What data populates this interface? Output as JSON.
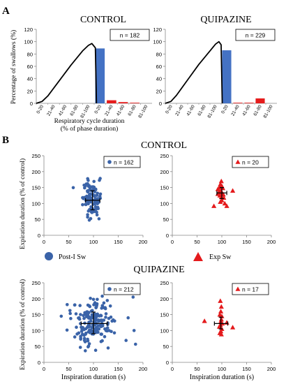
{
  "panels": {
    "A": {
      "letter": "A"
    },
    "B": {
      "letter": "B"
    }
  },
  "chart_data": [
    {
      "id": "a-control",
      "type": "bar",
      "title": "CONTROL",
      "ylabel": "Percentage of swallows (%)",
      "xlabel": "Respiratory cycle duration",
      "xlabel2": "(% of phase duration)",
      "n_label": "n = 182",
      "ylim": [
        0,
        120
      ],
      "yticks": [
        0,
        20,
        40,
        60,
        80,
        100,
        120
      ],
      "categories": [
        "0-20",
        "21-40",
        "41-60",
        "61-80",
        "81-100",
        "0-20",
        "21-40",
        "41-60",
        "61-80",
        "81-100"
      ],
      "values": [
        0,
        0,
        0,
        0,
        0,
        89,
        5,
        2,
        1,
        0
      ],
      "bar_colors": [
        "#4472C4",
        "#4472C4",
        "#4472C4",
        "#4472C4",
        "#4472C4",
        "#4472C4",
        "#E51C1C",
        "#E51C1C",
        "#E51C1C",
        "#E51C1C"
      ],
      "curve": {
        "x": [
          0,
          0.5,
          1,
          2,
          3,
          4,
          4.5,
          4.8,
          5.1,
          5.2
        ],
        "y": [
          0,
          3,
          12,
          37,
          62,
          85,
          94,
          97,
          90,
          0
        ]
      }
    },
    {
      "id": "a-quipazine",
      "type": "bar",
      "title": "QUIPAZINE",
      "ylabel": "",
      "xlabel": "",
      "n_label": "n = 229",
      "ylim": [
        0,
        120
      ],
      "yticks": [
        0,
        20,
        40,
        60,
        80,
        100,
        120
      ],
      "categories": [
        "0-20",
        "21-40",
        "41-60",
        "61-80",
        "81-100",
        "0-20",
        "21-40",
        "41-60",
        "61-80",
        "81-100"
      ],
      "values": [
        0,
        0,
        0,
        0,
        0,
        86,
        1,
        1,
        8,
        0
      ],
      "bar_colors": [
        "#4472C4",
        "#4472C4",
        "#4472C4",
        "#4472C4",
        "#4472C4",
        "#4472C4",
        "#E51C1C",
        "#E51C1C",
        "#E51C1C",
        "#E51C1C"
      ],
      "curve": {
        "x": [
          0,
          0.5,
          1,
          2,
          3,
          4,
          4.5,
          4.8,
          5.0,
          5.1
        ],
        "y": [
          0,
          3,
          13,
          38,
          63,
          85,
          96,
          100,
          95,
          0
        ]
      }
    },
    {
      "id": "b-control-post",
      "type": "scatter",
      "title": "CONTROL",
      "ylabel": "Expiration duration (% of control)",
      "xlabel": "",
      "n_label": "n = 162",
      "color": "#3A63A8",
      "marker": "circle",
      "xlim": [
        0,
        200
      ],
      "ylim": [
        0,
        250
      ],
      "xticks": [
        0,
        50,
        100,
        150,
        200
      ],
      "yticks": [
        0,
        50,
        100,
        150,
        200,
        250
      ],
      "mean": [
        98,
        110
      ],
      "sd_x": [
        84,
        113
      ],
      "sd_y": [
        80,
        140
      ],
      "seed": 7,
      "n_points": 100,
      "cx": 97,
      "sx": 9,
      "cy": 112,
      "sy": 30
    },
    {
      "id": "b-control-exp",
      "type": "scatter",
      "ylabel": "",
      "xlabel": "",
      "n_label": "n = 20",
      "color": "#E41A1C",
      "marker": "triangle",
      "xlim": [
        0,
        200
      ],
      "ylim": [
        0,
        250
      ],
      "xticks": [
        0,
        50,
        100,
        150,
        200
      ],
      "yticks": [
        0,
        50,
        100,
        150,
        200,
        250
      ],
      "mean": [
        100,
        133
      ],
      "sd_x": [
        90,
        110
      ],
      "sd_y": [
        115,
        150
      ],
      "points": [
        [
          92,
          145
        ],
        [
          95,
          150
        ],
        [
          97,
          160
        ],
        [
          99,
          170
        ],
        [
          100,
          155
        ],
        [
          102,
          148
        ],
        [
          98,
          140
        ],
        [
          94,
          135
        ],
        [
          101,
          132
        ],
        [
          103,
          128
        ],
        [
          96,
          125
        ],
        [
          99,
          120
        ],
        [
          104,
          118
        ],
        [
          100,
          110
        ],
        [
          97,
          105
        ],
        [
          106,
          100
        ],
        [
          84,
          92
        ],
        [
          110,
          92
        ],
        [
          122,
          140
        ],
        [
          92,
          130
        ]
      ]
    },
    {
      "id": "b-quip-post",
      "type": "scatter",
      "title": "QUIPAZINE",
      "ylabel": "Expiration duration (% of control)",
      "xlabel": "Inspiration duration (s)",
      "n_label": "n = 212",
      "color": "#3A63A8",
      "marker": "circle",
      "xlim": [
        0,
        200
      ],
      "ylim": [
        0,
        250
      ],
      "xticks": [
        0,
        50,
        100,
        150,
        200
      ],
      "yticks": [
        0,
        50,
        100,
        150,
        200,
        250
      ],
      "mean": [
        100,
        122
      ],
      "sd_x": [
        75,
        128
      ],
      "sd_y": [
        90,
        158
      ],
      "seed": 13,
      "n_points": 170,
      "cx": 100,
      "sx": 22,
      "cy": 122,
      "sy": 35,
      "extra_points": [
        [
          35,
          145
        ],
        [
          180,
          205
        ],
        [
          182,
          100
        ],
        [
          185,
          57
        ],
        [
          170,
          140
        ]
      ]
    },
    {
      "id": "b-quip-exp",
      "type": "scatter",
      "ylabel": "",
      "xlabel": "Inspiration duration (s)",
      "n_label": "n = 17",
      "color": "#E41A1C",
      "marker": "triangle",
      "xlim": [
        0,
        200
      ],
      "ylim": [
        0,
        250
      ],
      "xticks": [
        0,
        50,
        100,
        150,
        200
      ],
      "yticks": [
        0,
        50,
        100,
        150,
        200,
        250
      ],
      "mean": [
        98,
        122
      ],
      "sd_x": [
        85,
        112
      ],
      "sd_y": [
        105,
        142
      ],
      "points": [
        [
          97,
          193
        ],
        [
          99,
          175
        ],
        [
          98,
          160
        ],
        [
          96,
          150
        ],
        [
          100,
          145
        ],
        [
          99,
          135
        ],
        [
          98,
          128
        ],
        [
          101,
          122
        ],
        [
          97,
          118
        ],
        [
          95,
          112
        ],
        [
          100,
          105
        ],
        [
          98,
          98
        ],
        [
          96,
          92
        ],
        [
          99,
          88
        ],
        [
          65,
          130
        ],
        [
          122,
          110
        ],
        [
          110,
          125
        ]
      ]
    }
  ],
  "legend": {
    "items": [
      {
        "label": "Post-I Sw",
        "color": "#3A63A8",
        "marker": "circle"
      },
      {
        "label": "Exp Sw",
        "color": "#E41A1C",
        "marker": "triangle"
      }
    ]
  }
}
